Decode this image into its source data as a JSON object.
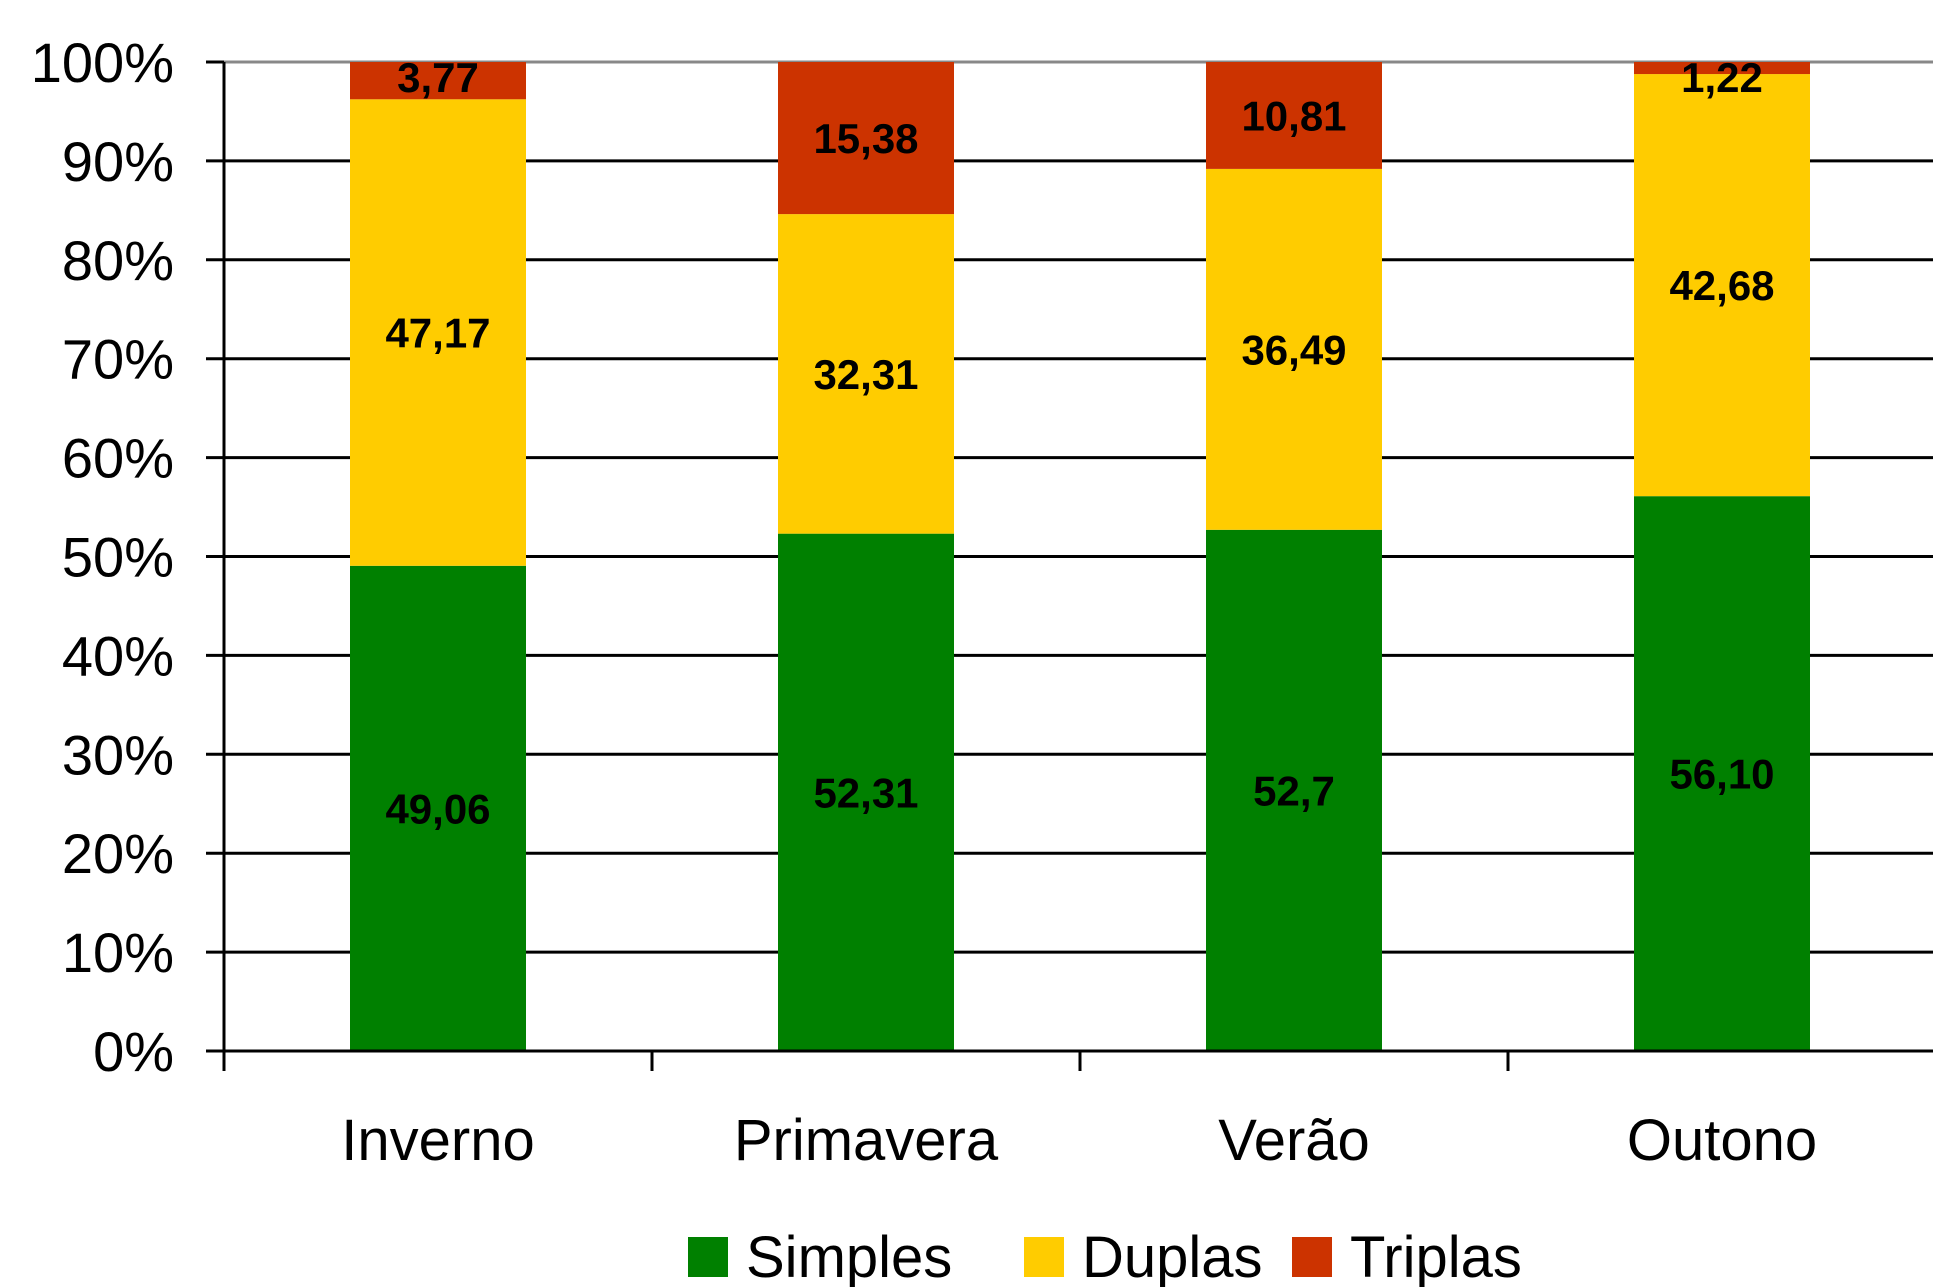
{
  "chart_data": {
    "type": "bar",
    "stacked": true,
    "percent_stacked": true,
    "categories": [
      "Inverno",
      "Primavera",
      "Verão",
      "Outono"
    ],
    "series": [
      {
        "name": "Simples",
        "color": "#008000",
        "values": [
          49.06,
          52.31,
          52.7,
          56.1
        ],
        "labels": [
          "49,06",
          "52,31",
          "52,7",
          "56,10"
        ]
      },
      {
        "name": "Duplas",
        "color": "#FFCC00",
        "values": [
          47.17,
          32.31,
          36.49,
          42.68
        ],
        "labels": [
          "47,17",
          "32,31",
          "36,49",
          "42,68"
        ]
      },
      {
        "name": "Triplas",
        "color": "#CC3300",
        "values": [
          3.77,
          15.38,
          10.81,
          1.22
        ],
        "labels": [
          "3,77",
          "15,38",
          "10,81",
          "1,22"
        ]
      }
    ],
    "y_ticks": [
      "0%",
      "10%",
      "20%",
      "30%",
      "40%",
      "50%",
      "60%",
      "70%",
      "80%",
      "90%",
      "100%"
    ],
    "ylim": [
      0,
      100
    ],
    "grid": true,
    "legend_position": "bottom"
  }
}
